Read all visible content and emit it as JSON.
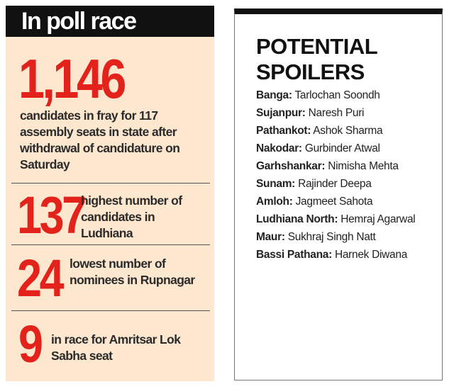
{
  "left": {
    "title": "In poll race",
    "stats": [
      {
        "number": "1,146",
        "text": "candidates in fray for 117 assembly seats in state after withdrawal of candidature on Saturday"
      },
      {
        "number": "137",
        "text": "highest number of candidates in Ludhiana"
      },
      {
        "number": "24",
        "text": "lowest number of nominees in Rupnagar"
      },
      {
        "number": "9",
        "text": "in race for Amritsar Lok Sabha seat"
      }
    ]
  },
  "right": {
    "title": "POTENTIAL SPOILERS",
    "items": [
      {
        "place": "Banga:",
        "name": "Tarlochan Soondh"
      },
      {
        "place": "Sujanpur:",
        "name": "Naresh Puri"
      },
      {
        "place": "Pathankot:",
        "name": "Ashok Sharma"
      },
      {
        "place": "Nakodar:",
        "name": "Gurbinder Atwal"
      },
      {
        "place": "Garhshankar:",
        "name": "Nimisha Mehta"
      },
      {
        "place": "Sunam:",
        "name": "Rajinder Deepa"
      },
      {
        "place": "Amloh:",
        "name": "Jagmeet Sahota"
      },
      {
        "place": "Ludhiana North:",
        "name": "Hemraj Agarwal"
      },
      {
        "place": "Maur:",
        "name": "Sukhraj Singh Natt"
      },
      {
        "place": "Bassi Pathana:",
        "name": "Harnek Diwana"
      }
    ]
  }
}
